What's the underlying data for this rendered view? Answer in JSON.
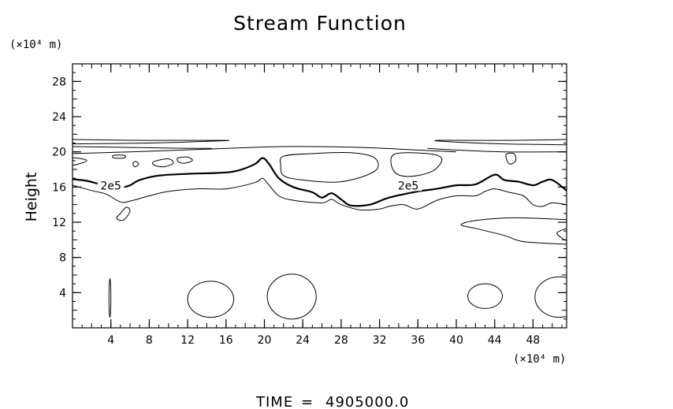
{
  "chart_data": {
    "type": "contour",
    "title": "Stream Function",
    "ylabel": "Height",
    "y_unit_label": "(×10⁴ m)",
    "x_unit_label": "(×10⁴ m)",
    "xlim": [
      0,
      51.5
    ],
    "ylim": [
      0,
      30
    ],
    "x_ticks": [
      4,
      8,
      12,
      16,
      20,
      24,
      28,
      32,
      36,
      40,
      44,
      48
    ],
    "y_ticks": [
      4,
      8,
      12,
      16,
      20,
      24,
      28
    ],
    "contour_labels": [
      {
        "text": "2e5",
        "x": 4.0,
        "y": 16.0
      },
      {
        "text": "2e5",
        "x": 35.0,
        "y": 16.0
      }
    ],
    "contours": [
      {
        "name": "upper-band-1",
        "weight": "thin",
        "points": [
          [
            0,
            21.4
          ],
          [
            8,
            21.3
          ],
          [
            16,
            21.3
          ],
          [
            14,
            21.2
          ],
          [
            8,
            21.0
          ],
          [
            0,
            20.9
          ]
        ]
      },
      {
        "name": "upper-band-2",
        "weight": "thin",
        "points": [
          [
            0,
            20.6
          ],
          [
            6,
            20.5
          ],
          [
            12,
            20.4
          ],
          [
            14.5,
            20.4
          ]
        ]
      },
      {
        "name": "upper-band-right-1",
        "weight": "thin",
        "points": [
          [
            51.5,
            21.4
          ],
          [
            45,
            21.3
          ],
          [
            38,
            21.3
          ],
          [
            40,
            21.1
          ],
          [
            45,
            20.9
          ],
          [
            51.5,
            20.8
          ]
        ]
      },
      {
        "name": "upper-band-right-2",
        "weight": "thin",
        "points": [
          [
            37,
            20.4
          ],
          [
            40,
            20.2
          ],
          [
            45,
            20.0
          ],
          [
            51.5,
            20.0
          ]
        ]
      },
      {
        "name": "mid-envelope",
        "weight": "thin",
        "points": [
          [
            0,
            19.8
          ],
          [
            6,
            20.0
          ],
          [
            14,
            20.3
          ],
          [
            22,
            20.6
          ],
          [
            30,
            20.5
          ],
          [
            36,
            20.2
          ],
          [
            40,
            20.0
          ]
        ]
      },
      {
        "name": "thin-contour-lower",
        "weight": "thin",
        "points": [
          [
            0,
            16.2
          ],
          [
            2,
            15.6
          ],
          [
            3.5,
            15.2
          ],
          [
            5,
            14.3
          ],
          [
            6,
            14.4
          ],
          [
            8,
            15.0
          ],
          [
            10,
            15.5
          ],
          [
            13,
            15.8
          ],
          [
            16,
            15.8
          ],
          [
            19,
            16.5
          ],
          [
            19.8,
            17.0
          ],
          [
            20.5,
            16.2
          ],
          [
            21.5,
            15.0
          ],
          [
            23,
            14.5
          ],
          [
            26,
            14.2
          ],
          [
            27,
            14.6
          ],
          [
            28,
            14.0
          ],
          [
            30,
            13.4
          ],
          [
            32,
            13.5
          ],
          [
            33,
            13.8
          ],
          [
            34.5,
            14.0
          ],
          [
            36,
            13.5
          ],
          [
            38,
            14.5
          ],
          [
            40,
            15.0
          ],
          [
            42,
            15.0
          ],
          [
            43,
            15.5
          ],
          [
            44,
            15.8
          ],
          [
            45.5,
            15.4
          ],
          [
            47,
            15.0
          ],
          [
            48,
            14.0
          ],
          [
            49,
            13.8
          ],
          [
            50,
            14.2
          ],
          [
            51.5,
            14.0
          ]
        ]
      },
      {
        "name": "stream-2e5",
        "weight": "thick",
        "points": [
          [
            0,
            16.9
          ],
          [
            1.5,
            16.7
          ],
          [
            3,
            16.3
          ],
          [
            5,
            16.0
          ],
          [
            6,
            16.2
          ],
          [
            7,
            16.8
          ],
          [
            9,
            17.3
          ],
          [
            12,
            17.5
          ],
          [
            15,
            17.6
          ],
          [
            17,
            17.8
          ],
          [
            19,
            18.6
          ],
          [
            19.8,
            19.3
          ],
          [
            20.5,
            18.6
          ],
          [
            21.5,
            17.0
          ],
          [
            23,
            16.0
          ],
          [
            25,
            15.4
          ],
          [
            26,
            14.8
          ],
          [
            27,
            15.3
          ],
          [
            28,
            14.6
          ],
          [
            29,
            13.9
          ],
          [
            31,
            14.0
          ],
          [
            33,
            14.8
          ],
          [
            36,
            15.5
          ],
          [
            38,
            15.8
          ],
          [
            40,
            16.2
          ],
          [
            42,
            16.3
          ],
          [
            44,
            17.4
          ],
          [
            45,
            16.8
          ],
          [
            46.5,
            16.6
          ],
          [
            48,
            16.2
          ],
          [
            49,
            16.6
          ],
          [
            50,
            16.8
          ],
          [
            51.5,
            15.6
          ]
        ]
      },
      {
        "name": "cell-upper-center",
        "weight": "thin",
        "closed": true,
        "points": [
          [
            22,
            19.5
          ],
          [
            25,
            19.8
          ],
          [
            29,
            19.9
          ],
          [
            31.5,
            19.3
          ],
          [
            31.5,
            17.8
          ],
          [
            28,
            16.6
          ],
          [
            24,
            16.8
          ],
          [
            22,
            17.3
          ],
          [
            21.7,
            18.5
          ]
        ]
      },
      {
        "name": "cell-upper-right",
        "weight": "thin",
        "closed": true,
        "points": [
          [
            33.5,
            19.7
          ],
          [
            37,
            19.8
          ],
          [
            38.5,
            19.2
          ],
          [
            37.5,
            17.8
          ],
          [
            35,
            17.2
          ],
          [
            33.5,
            17.8
          ]
        ]
      },
      {
        "name": "small-cell-1",
        "weight": "thin",
        "closed": true,
        "points": [
          [
            8.5,
            18.9
          ],
          [
            10,
            19.2
          ],
          [
            10.5,
            18.7
          ],
          [
            9.5,
            18.3
          ],
          [
            8.5,
            18.5
          ]
        ]
      },
      {
        "name": "small-cell-2",
        "weight": "thin",
        "closed": true,
        "points": [
          [
            11,
            19.3
          ],
          [
            12,
            19.4
          ],
          [
            12.5,
            19.0
          ],
          [
            11.6,
            18.7
          ],
          [
            11,
            18.9
          ]
        ]
      },
      {
        "name": "small-cell-3",
        "weight": "thin",
        "closed": true,
        "points": [
          [
            0,
            19.3
          ],
          [
            1.5,
            19.0
          ],
          [
            0,
            18.5
          ]
        ]
      },
      {
        "name": "small-cell-4",
        "weight": "thin",
        "closed": true,
        "points": [
          [
            4.3,
            19.6
          ],
          [
            5.4,
            19.6
          ],
          [
            5.4,
            19.3
          ],
          [
            4.3,
            19.3
          ]
        ]
      },
      {
        "name": "small-cell-5",
        "weight": "thin",
        "closed": true,
        "points": [
          [
            6.3,
            18.7
          ],
          [
            6.6,
            18.9
          ],
          [
            6.9,
            18.6
          ],
          [
            6.5,
            18.3
          ]
        ]
      },
      {
        "name": "small-cell-6",
        "weight": "thin",
        "closed": true,
        "points": [
          [
            45.2,
            19.7
          ],
          [
            46,
            19.8
          ],
          [
            46.2,
            19.0
          ],
          [
            45.6,
            18.6
          ],
          [
            45.3,
            19.0
          ]
        ]
      },
      {
        "name": "small-cell-7",
        "weight": "thin",
        "closed": true,
        "points": [
          [
            5,
            13.0
          ],
          [
            5.6,
            13.7
          ],
          [
            6,
            13.3
          ],
          [
            5.5,
            12.4
          ],
          [
            5,
            12.2
          ],
          [
            4.6,
            12.5
          ]
        ]
      },
      {
        "name": "right-mid-contour",
        "weight": "thin",
        "points": [
          [
            51.5,
            12.3
          ],
          [
            46,
            12.5
          ],
          [
            42,
            12.2
          ],
          [
            40.5,
            11.7
          ],
          [
            42,
            11.3
          ],
          [
            45,
            10.5
          ],
          [
            47,
            9.8
          ],
          [
            51.5,
            9.5
          ]
        ]
      },
      {
        "name": "right-edge-small",
        "weight": "thin",
        "points": [
          [
            51.5,
            11.3
          ],
          [
            50.5,
            10.8
          ],
          [
            51,
            10.2
          ],
          [
            51.5,
            9.9
          ]
        ]
      },
      {
        "name": "bottom-cell-1",
        "weight": "thin",
        "ellipse": [
          4,
          1.2,
          3.8,
          5.6
        ]
      },
      {
        "name": "bottom-cell-2",
        "weight": "thin",
        "ellipse": [
          12,
          1.2,
          16.8,
          5.3
        ]
      },
      {
        "name": "bottom-cell-3",
        "weight": "thin",
        "ellipse": [
          20.3,
          1.0,
          25.4,
          6.1
        ]
      },
      {
        "name": "bottom-cell-4",
        "weight": "thin",
        "ellipse": [
          41.2,
          2.2,
          44.8,
          5.0
        ]
      },
      {
        "name": "bottom-cell-5",
        "weight": "thin",
        "ellipse": [
          48.2,
          1.2,
          53.3,
          5.8
        ]
      }
    ]
  },
  "footer": {
    "label": "TIME",
    "eq": "=",
    "value": "4905000.0"
  }
}
